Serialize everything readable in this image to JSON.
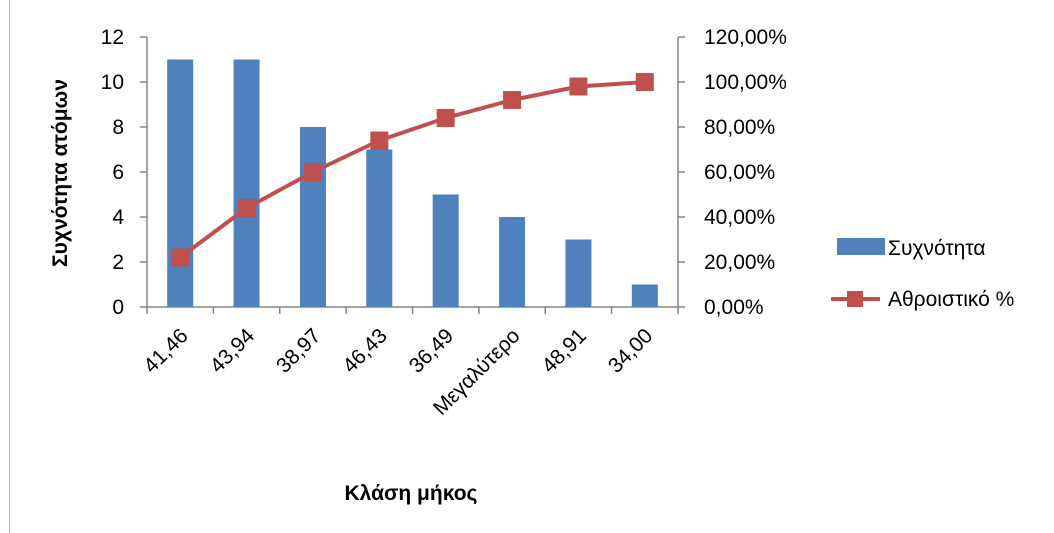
{
  "chart_data": {
    "type": "bar+line",
    "categories": [
      "41,46",
      "43,94",
      "38,97",
      "46,43",
      "36,49",
      "Μεγαλύτερο",
      "48,91",
      "34,00"
    ],
    "series": [
      {
        "name": "Συχνότητα",
        "type": "bar",
        "axis": "left",
        "color": "#4F81BD",
        "values": [
          11,
          11,
          8,
          7,
          5,
          4,
          3,
          1
        ]
      },
      {
        "name": "Αθροιστικό %",
        "type": "line",
        "axis": "right",
        "color": "#C0504D",
        "values": [
          22,
          44,
          60,
          74,
          84,
          92,
          98,
          100
        ]
      }
    ],
    "xlabel": "Κλάση μήκος",
    "ylabel": "Συχνότητα ατόμων",
    "ylim": [
      0,
      12
    ],
    "yticks": [
      "0",
      "2",
      "4",
      "6",
      "8",
      "10",
      "12"
    ],
    "y2lim": [
      0,
      120
    ],
    "y2ticks": [
      "0,00%",
      "20,00%",
      "40,00%",
      "60,00%",
      "80,00%",
      "100,00%",
      "120,00%"
    ],
    "legend": "right",
    "grid": false
  }
}
